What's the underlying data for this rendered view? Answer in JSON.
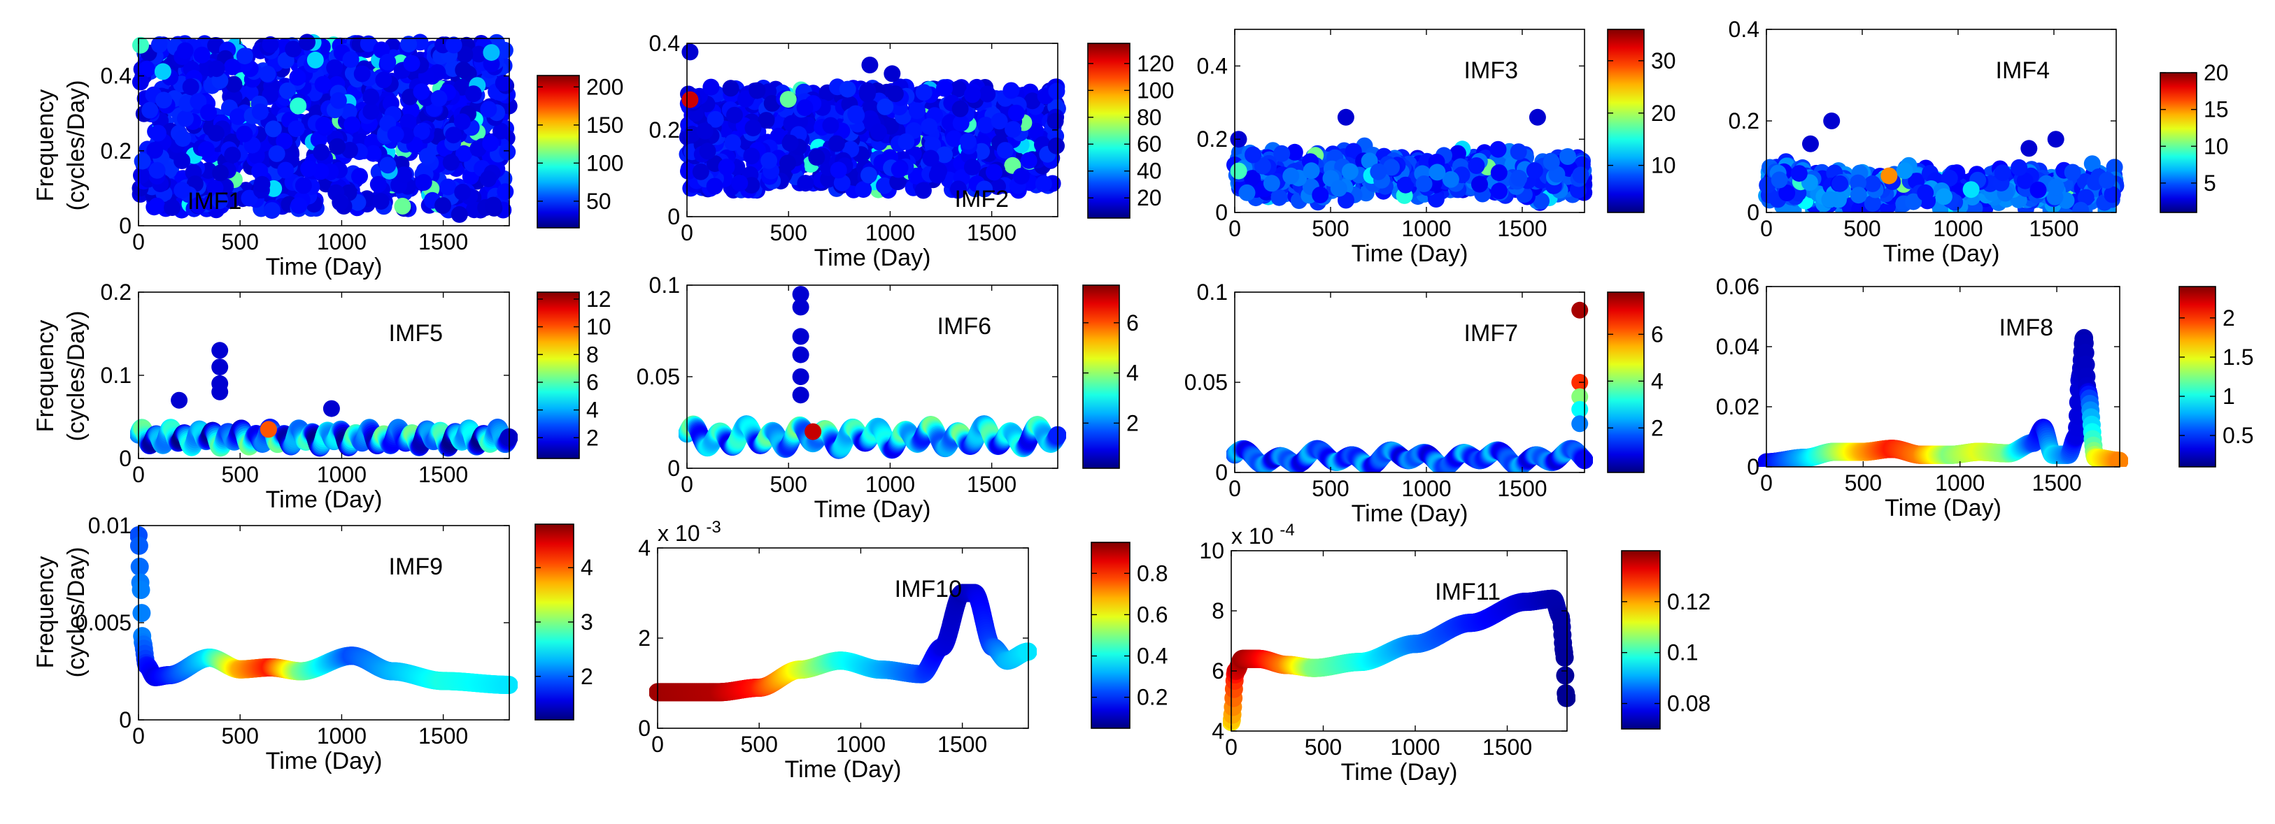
{
  "figure": {
    "x_tick_labels": [
      "0",
      "500",
      "1000",
      "1500"
    ],
    "xlabel": "Time (Day)",
    "ylabel_line1": "Frequency",
    "ylabel_line2": "(cycles/Day)",
    "colormap": "jet"
  },
  "chart_data": [
    {
      "type": "scatter",
      "panel": "IMF1",
      "title": "IMF1",
      "title_position": "bottom-left",
      "xlim": [
        0,
        1825
      ],
      "ylim": [
        0,
        0.5
      ],
      "y_ticks": [
        0,
        0.2,
        0.4
      ],
      "y_tick_labels": [
        "0",
        "0.2",
        "0.4"
      ],
      "ylabel": "Frequency (cycles/Day)",
      "colorbar": {
        "range": [
          15,
          215
        ],
        "ticks": [
          50,
          100,
          150,
          200
        ],
        "tick_labels": [
          "50",
          "100",
          "150",
          "200"
        ]
      },
      "pattern": "noise",
      "y_range": [
        0.04,
        0.49
      ],
      "n_points": 1100,
      "color_level_typical": 0.12,
      "outliers": [
        {
          "x": 1580,
          "y": 0.03
        },
        {
          "x": 830,
          "y": 0.49
        }
      ]
    },
    {
      "type": "scatter",
      "panel": "IMF2",
      "title": "IMF2",
      "title_position": "bottom-right",
      "xlim": [
        0,
        1825
      ],
      "ylim": [
        0,
        0.4
      ],
      "y_ticks": [
        0,
        0.2,
        0.4
      ],
      "y_tick_labels": [
        "0",
        "0.2",
        "0.4"
      ],
      "colorbar": {
        "range": [
          5,
          135
        ],
        "ticks": [
          20,
          40,
          60,
          80,
          100,
          120
        ],
        "tick_labels": [
          "20",
          "40",
          "60",
          "80",
          "100",
          "120"
        ]
      },
      "pattern": "noise",
      "y_range": [
        0.06,
        0.3
      ],
      "n_points": 900,
      "color_level_typical": 0.12,
      "outliers": [
        {
          "x": 15,
          "y": 0.38
        },
        {
          "x": 15,
          "y": 0.27,
          "c": 125
        },
        {
          "x": 900,
          "y": 0.35
        },
        {
          "x": 1010,
          "y": 0.33
        }
      ]
    },
    {
      "type": "scatter",
      "panel": "IMF3",
      "title": "IMF3",
      "title_position": "top-right",
      "xlim": [
        0,
        1825
      ],
      "ylim": [
        0,
        0.5
      ],
      "y_ticks": [
        0,
        0.2,
        0.4
      ],
      "y_tick_labels": [
        "0",
        "0.2",
        "0.4"
      ],
      "colorbar": {
        "range": [
          1,
          36
        ],
        "ticks": [
          10,
          20,
          30
        ],
        "tick_labels": [
          "10",
          "20",
          "30"
        ]
      },
      "pattern": "band",
      "base": 0.1,
      "spread": 0.04,
      "n_points": 800,
      "color_level_typical": 0.18,
      "outliers": [
        {
          "x": 580,
          "y": 0.26
        },
        {
          "x": 1580,
          "y": 0.26
        },
        {
          "x": 20,
          "y": 0.2
        }
      ]
    },
    {
      "type": "scatter",
      "panel": "IMF4",
      "title": "IMF4",
      "title_position": "top-right",
      "xlim": [
        0,
        1825
      ],
      "ylim": [
        0,
        0.4
      ],
      "y_ticks": [
        0,
        0.2,
        0.4
      ],
      "y_tick_labels": [
        "0",
        "0.2",
        "0.4"
      ],
      "colorbar": {
        "range": [
          1,
          20
        ],
        "ticks": [
          5,
          10,
          15,
          20
        ],
        "tick_labels": [
          "5",
          "10",
          "15",
          "20"
        ]
      },
      "pattern": "band",
      "base": 0.05,
      "spread": 0.03,
      "n_points": 700,
      "color_level_typical": 0.2,
      "outliers": [
        {
          "x": 340,
          "y": 0.2
        },
        {
          "x": 230,
          "y": 0.15
        },
        {
          "x": 1370,
          "y": 0.14
        },
        {
          "x": 1510,
          "y": 0.16
        },
        {
          "x": 640,
          "y": 0.08,
          "c": 15
        }
      ]
    },
    {
      "type": "line",
      "panel": "IMF5",
      "title": "IMF5",
      "title_position": "top-right",
      "xlim": [
        0,
        1825
      ],
      "ylim": [
        0,
        0.2
      ],
      "y_ticks": [
        0,
        0.1,
        0.2
      ],
      "y_tick_labels": [
        "0",
        "0.1",
        "0.2"
      ],
      "ylabel": "Frequency (cycles/Day)",
      "colorbar": {
        "range": [
          0.5,
          12.5
        ],
        "ticks": [
          2,
          4,
          6,
          8,
          10,
          12
        ],
        "tick_labels": [
          "2",
          "4",
          "6",
          "8",
          "10",
          "12"
        ]
      },
      "base": 0.025,
      "amp1": 0.008,
      "period1": 70,
      "amp2": 0.004,
      "period2": 160,
      "color_base": 0.25,
      "color_amp": 0.25,
      "outliers": [
        {
          "x": 200,
          "y": 0.07
        },
        {
          "x": 400,
          "y": 0.13
        },
        {
          "x": 400,
          "y": 0.11
        },
        {
          "x": 400,
          "y": 0.09
        },
        {
          "x": 400,
          "y": 0.08
        },
        {
          "x": 640,
          "y": 0.035,
          "c": 10
        },
        {
          "x": 950,
          "y": 0.06
        }
      ]
    },
    {
      "type": "line",
      "panel": "IMF6",
      "title": "IMF6",
      "title_position": "top-right",
      "xlim": [
        0,
        1825
      ],
      "ylim": [
        0,
        0.1
      ],
      "y_ticks": [
        0,
        0.05,
        0.1
      ],
      "y_tick_labels": [
        "0",
        "0.05",
        "0.1"
      ],
      "colorbar": {
        "range": [
          0.2,
          7.5
        ],
        "ticks": [
          2,
          4,
          6
        ],
        "tick_labels": [
          "2",
          "4",
          "6"
        ]
      },
      "base": 0.017,
      "amp1": 0.005,
      "period1": 130,
      "amp2": 0.002,
      "period2": 290,
      "color_base": 0.3,
      "color_amp": 0.2,
      "outliers": [
        {
          "x": 560,
          "y": 0.095
        },
        {
          "x": 560,
          "y": 0.088
        },
        {
          "x": 560,
          "y": 0.072
        },
        {
          "x": 560,
          "y": 0.062
        },
        {
          "x": 560,
          "y": 0.05
        },
        {
          "x": 560,
          "y": 0.04
        },
        {
          "x": 620,
          "y": 0.02,
          "c": 7
        }
      ]
    },
    {
      "type": "line",
      "panel": "IMF7",
      "title": "IMF7",
      "title_position": "top-right",
      "xlim": [
        0,
        1825
      ],
      "ylim": [
        0,
        0.1
      ],
      "y_ticks": [
        0,
        0.05,
        0.1
      ],
      "y_tick_labels": [
        "0",
        "0.05",
        "0.1"
      ],
      "colorbar": {
        "range": [
          0.1,
          7.8
        ],
        "ticks": [
          2,
          4,
          6
        ],
        "tick_labels": [
          "2",
          "4",
          "6"
        ]
      },
      "base": 0.008,
      "amp1": 0.003,
      "period1": 190,
      "amp2": 0.002,
      "period2": 430,
      "color_base": 0.2,
      "color_amp": 0.12,
      "outliers": [
        {
          "x": 1800,
          "y": 0.09,
          "c": 7.5
        },
        {
          "x": 1800,
          "y": 0.05,
          "c": 6.5
        },
        {
          "x": 1800,
          "y": 0.042,
          "c": 4
        },
        {
          "x": 1800,
          "y": 0.035,
          "c": 3
        },
        {
          "x": 1800,
          "y": 0.027,
          "c": 2
        }
      ]
    },
    {
      "type": "line",
      "panel": "IMF8",
      "title": "IMF8",
      "title_position": "top-right",
      "xlim": [
        0,
        1825
      ],
      "ylim": [
        0,
        0.06
      ],
      "y_ticks": [
        0,
        0.02,
        0.04,
        0.06
      ],
      "y_tick_labels": [
        "0",
        "0.02",
        "0.04",
        "0.06"
      ],
      "colorbar": {
        "range": [
          0.1,
          2.4
        ],
        "ticks": [
          0.5,
          1,
          1.5,
          2
        ],
        "tick_labels": [
          "0.5",
          "1",
          "1.5",
          "2"
        ]
      },
      "points": [
        [
          0,
          0.0015
        ],
        [
          200,
          0.003
        ],
        [
          350,
          0.005
        ],
        [
          500,
          0.005
        ],
        [
          650,
          0.006
        ],
        [
          800,
          0.004
        ],
        [
          950,
          0.004
        ],
        [
          1100,
          0.005
        ],
        [
          1250,
          0.0045
        ],
        [
          1380,
          0.008
        ],
        [
          1430,
          0.013
        ],
        [
          1480,
          0.004
        ],
        [
          1560,
          0.004
        ],
        [
          1600,
          0.01
        ],
        [
          1620,
          0.03
        ],
        [
          1640,
          0.043
        ],
        [
          1660,
          0.025
        ],
        [
          1700,
          0.003
        ],
        [
          1825,
          0.002
        ]
      ],
      "colors": [
        0.1,
        0.3,
        0.5,
        0.7,
        0.85,
        0.75,
        0.5,
        0.6,
        0.5,
        0.2,
        0.1,
        0.35,
        0.25,
        0.1,
        0.08,
        0.05,
        0.08,
        0.6,
        0.75
      ]
    },
    {
      "type": "line",
      "panel": "IMF9",
      "title": "IMF9",
      "title_position": "top-right",
      "xlim": [
        0,
        1825
      ],
      "ylim": [
        0,
        0.01
      ],
      "y_ticks": [
        0,
        0.005,
        0.01
      ],
      "y_tick_labels": [
        "0",
        "0.005",
        "0.01"
      ],
      "ylabel": "Frequency (cycles/Day)",
      "colorbar": {
        "range": [
          1.2,
          4.8
        ],
        "ticks": [
          2,
          3,
          4
        ],
        "tick_labels": [
          "2",
          "3",
          "4"
        ]
      },
      "points": [
        [
          0,
          0.0095
        ],
        [
          10,
          0.007
        ],
        [
          20,
          0.004
        ],
        [
          40,
          0.0028
        ],
        [
          80,
          0.0022
        ],
        [
          150,
          0.0023
        ],
        [
          350,
          0.0032
        ],
        [
          500,
          0.0026
        ],
        [
          650,
          0.0027
        ],
        [
          800,
          0.0025
        ],
        [
          1050,
          0.0033
        ],
        [
          1250,
          0.0025
        ],
        [
          1500,
          0.002
        ],
        [
          1825,
          0.0018
        ]
      ],
      "colors": [
        0.2,
        0.25,
        0.25,
        0.15,
        0.1,
        0.15,
        0.35,
        0.7,
        0.85,
        0.5,
        0.2,
        0.3,
        0.4,
        0.35
      ]
    },
    {
      "type": "line",
      "panel": "IMF10",
      "title": "IMF10",
      "title_position": "top-right",
      "exponent_label": "x 10^-3",
      "exponent_base": "x 10",
      "exponent_power": "-3",
      "xlim": [
        0,
        1825
      ],
      "ylim": [
        0,
        0.004
      ],
      "y_ticks": [
        0,
        0.002,
        0.004
      ],
      "y_tick_labels": [
        "0",
        "2",
        "4"
      ],
      "colorbar": {
        "range": [
          0.05,
          0.95
        ],
        "ticks": [
          0.2,
          0.4,
          0.6,
          0.8
        ],
        "tick_labels": [
          "0.2",
          "0.4",
          "0.6",
          "0.8"
        ]
      },
      "points": [
        [
          0,
          0.0008
        ],
        [
          300,
          0.0008
        ],
        [
          500,
          0.0009
        ],
        [
          700,
          0.0013
        ],
        [
          900,
          0.0015
        ],
        [
          1100,
          0.0013
        ],
        [
          1300,
          0.0012
        ],
        [
          1400,
          0.0018
        ],
        [
          1500,
          0.003
        ],
        [
          1560,
          0.003
        ],
        [
          1650,
          0.0018
        ],
        [
          1720,
          0.0015
        ],
        [
          1825,
          0.0017
        ]
      ],
      "colors": [
        0.97,
        0.95,
        0.85,
        0.6,
        0.4,
        0.3,
        0.2,
        0.1,
        0.05,
        0.08,
        0.2,
        0.3,
        0.35
      ]
    },
    {
      "type": "line",
      "panel": "IMF11",
      "title": "IMF11",
      "title_position": "top-right",
      "exponent_label": "x 10^-4",
      "exponent_base": "x 10",
      "exponent_power": "-4",
      "xlim": [
        0,
        1825
      ],
      "ylim": [
        0.0004,
        0.001
      ],
      "y_ticks": [
        0.0004,
        0.0006,
        0.0008,
        0.001
      ],
      "y_tick_labels": [
        "4",
        "6",
        "8",
        "10"
      ],
      "colorbar": {
        "range": [
          0.07,
          0.14
        ],
        "ticks": [
          0.08,
          0.1,
          0.12
        ],
        "tick_labels": [
          "0.08",
          "0.1",
          "0.12"
        ]
      },
      "points": [
        [
          0,
          0.00043
        ],
        [
          25,
          0.0006
        ],
        [
          60,
          0.00064
        ],
        [
          150,
          0.00064
        ],
        [
          300,
          0.00062
        ],
        [
          450,
          0.00061
        ],
        [
          700,
          0.00063
        ],
        [
          1000,
          0.00069
        ],
        [
          1300,
          0.00076
        ],
        [
          1600,
          0.00083
        ],
        [
          1750,
          0.00084
        ],
        [
          1790,
          0.00078
        ],
        [
          1810,
          0.00066
        ],
        [
          1820,
          0.00051
        ]
      ],
      "colors": [
        0.65,
        0.9,
        0.97,
        0.9,
        0.75,
        0.5,
        0.4,
        0.25,
        0.15,
        0.08,
        0.05,
        0.04,
        0.03,
        0.02
      ]
    }
  ]
}
